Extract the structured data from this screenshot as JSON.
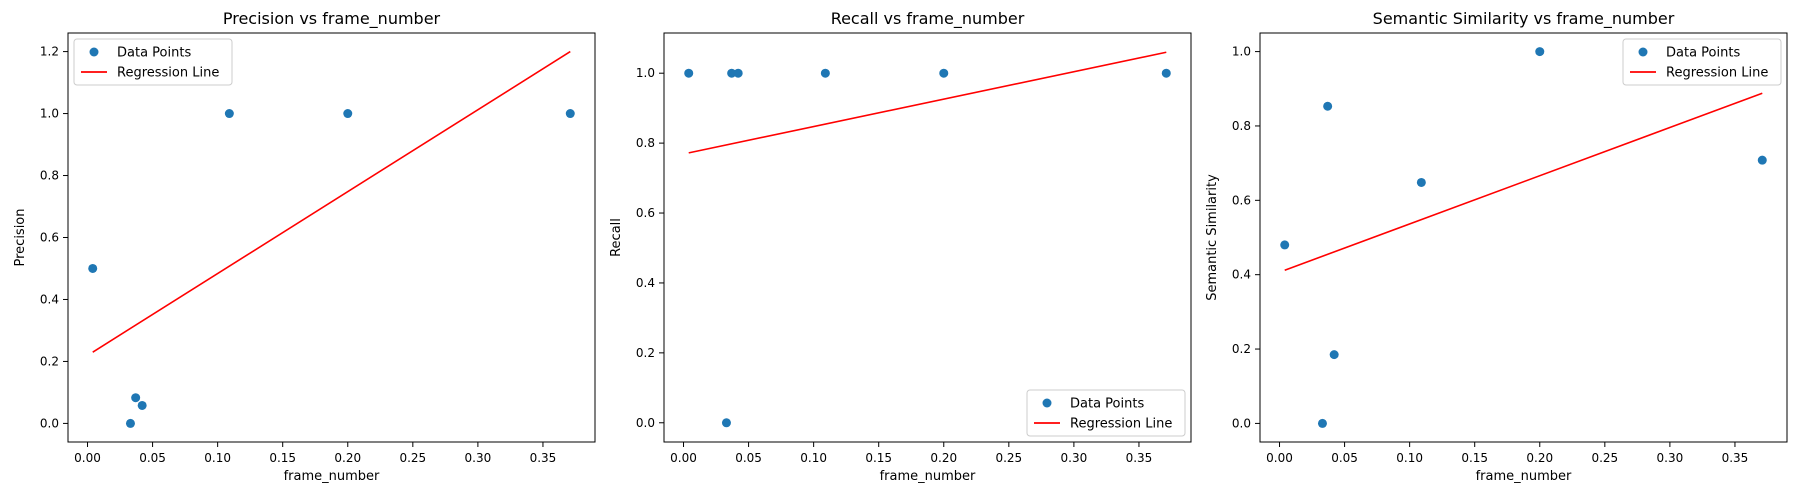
{
  "chart_data": [
    {
      "type": "scatter",
      "title": "Precision vs frame_number",
      "xlabel": "frame_number",
      "ylabel": "Precision",
      "xlim": [
        -0.015,
        0.39
      ],
      "ylim": [
        -0.06,
        1.26
      ],
      "xticks": [
        "0.00",
        "0.05",
        "0.10",
        "0.15",
        "0.20",
        "0.25",
        "0.30",
        "0.35"
      ],
      "xtick_values": [
        0,
        0.05,
        0.1,
        0.15,
        0.2,
        0.25,
        0.3,
        0.35
      ],
      "yticks": [
        "0.0",
        "0.2",
        "0.4",
        "0.6",
        "0.8",
        "1.0",
        "1.2"
      ],
      "ytick_values": [
        0,
        0.2,
        0.4,
        0.6,
        0.8,
        1.0,
        1.2
      ],
      "legend": "top-left",
      "grid": false,
      "series": [
        {
          "name": "Data Points",
          "kind": "scatter",
          "color": "#1f77b4",
          "x": [
            0.004,
            0.033,
            0.037,
            0.042,
            0.109,
            0.2,
            0.371
          ],
          "y": [
            0.5,
            0.0,
            0.083,
            0.058,
            1.0,
            1.0,
            1.0
          ]
        },
        {
          "name": "Regression Line",
          "kind": "line",
          "color": "#ff0000",
          "x": [
            0.004,
            0.371
          ],
          "y": [
            0.23,
            1.2
          ]
        }
      ]
    },
    {
      "type": "scatter",
      "title": "Recall vs frame_number",
      "xlabel": "frame_number",
      "ylabel": "Recall",
      "xlim": [
        -0.015,
        0.39
      ],
      "ylim": [
        -0.055,
        1.115
      ],
      "xticks": [
        "0.00",
        "0.05",
        "0.10",
        "0.15",
        "0.20",
        "0.25",
        "0.30",
        "0.35"
      ],
      "xtick_values": [
        0,
        0.05,
        0.1,
        0.15,
        0.2,
        0.25,
        0.3,
        0.35
      ],
      "yticks": [
        "0.0",
        "0.2",
        "0.4",
        "0.6",
        "0.8",
        "1.0"
      ],
      "ytick_values": [
        0,
        0.2,
        0.4,
        0.6,
        0.8,
        1.0
      ],
      "legend": "bottom-right",
      "grid": false,
      "series": [
        {
          "name": "Data Points",
          "kind": "scatter",
          "color": "#1f77b4",
          "x": [
            0.004,
            0.033,
            0.037,
            0.042,
            0.109,
            0.2,
            0.371
          ],
          "y": [
            1.0,
            0.0,
            1.0,
            1.0,
            1.0,
            1.0,
            1.0
          ]
        },
        {
          "name": "Regression Line",
          "kind": "line",
          "color": "#ff0000",
          "x": [
            0.004,
            0.371
          ],
          "y": [
            0.772,
            1.06
          ]
        }
      ]
    },
    {
      "type": "scatter",
      "title": "Semantic Similarity vs frame_number",
      "xlabel": "frame_number",
      "ylabel": "Semantic Similarity",
      "xlim": [
        -0.015,
        0.39
      ],
      "ylim": [
        -0.05,
        1.05
      ],
      "xticks": [
        "0.00",
        "0.05",
        "0.10",
        "0.15",
        "0.20",
        "0.25",
        "0.30",
        "0.35"
      ],
      "xtick_values": [
        0,
        0.05,
        0.1,
        0.15,
        0.2,
        0.25,
        0.3,
        0.35
      ],
      "yticks": [
        "0.0",
        "0.2",
        "0.4",
        "0.6",
        "0.8",
        "1.0"
      ],
      "ytick_values": [
        0,
        0.2,
        0.4,
        0.6,
        0.8,
        1.0
      ],
      "legend": "top-right",
      "grid": false,
      "series": [
        {
          "name": "Data Points",
          "kind": "scatter",
          "color": "#1f77b4",
          "x": [
            0.004,
            0.033,
            0.037,
            0.042,
            0.109,
            0.2,
            0.371
          ],
          "y": [
            0.48,
            0.0,
            0.853,
            0.185,
            0.648,
            1.0,
            0.708
          ]
        },
        {
          "name": "Regression Line",
          "kind": "line",
          "color": "#ff0000",
          "x": [
            0.004,
            0.371
          ],
          "y": [
            0.412,
            0.888
          ]
        }
      ]
    }
  ]
}
